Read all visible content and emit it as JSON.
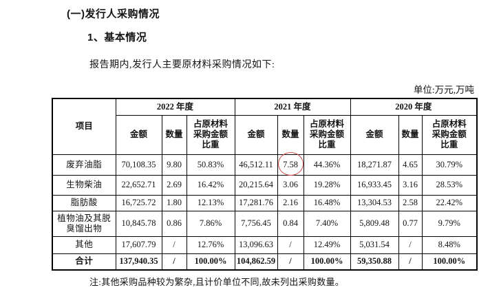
{
  "page": {
    "section_title": "(一)发行人采购情况",
    "subsection_title": "1、基本情况",
    "intro_text": "报告期内,发行人主要原材料采购情况如下:",
    "unit_label": "单位:万元,万吨",
    "note": "注:其他采购品种较为繁杂,且计价单位不同,故未列出采购数量。"
  },
  "table": {
    "header": {
      "item": "项目",
      "years": [
        "2022 年度",
        "2021 年度",
        "2020 年度"
      ],
      "metrics": [
        "金额",
        "数量",
        "占原材料\n采购金额\n比重"
      ]
    },
    "rows": [
      {
        "item": "废弃油脂",
        "values": [
          "70,108.35",
          "9.80",
          "50.83%",
          "46,512.11",
          "7.58",
          "44.36%",
          "18,271.87",
          "4.65",
          "30.79%"
        ],
        "circle_col": 4
      },
      {
        "item": "生物柴油",
        "values": [
          "22,652.71",
          "2.69",
          "16.42%",
          "20,215.64",
          "3.06",
          "19.28%",
          "16,933.45",
          "3.16",
          "28.53%"
        ]
      },
      {
        "item": "脂肪酸",
        "values": [
          "16,725.72",
          "1.80",
          "12.13%",
          "17,281.76",
          "2.16",
          "16.48%",
          "13,304.53",
          "2.58",
          "22.42%"
        ]
      },
      {
        "item": "植物油及其脱\n臭馏出物",
        "values": [
          "10,845.78",
          "0.86",
          "7.86%",
          "7,756.45",
          "0.84",
          "7.40%",
          "5,809.48",
          "0.77",
          "9.79%"
        ]
      },
      {
        "item": "其他",
        "values": [
          "17,607.79",
          "/",
          "12.76%",
          "13,096.63",
          "/",
          "12.49%",
          "5,031.54",
          "/",
          "8.48%"
        ]
      },
      {
        "item": "合计",
        "values": [
          "137,940.35",
          "/",
          "100.00%",
          "104,862.59",
          "/",
          "100.00%",
          "59,350.88",
          "/",
          "100.00%"
        ],
        "bold": true
      }
    ],
    "annotation": {
      "circled_value": "7.58",
      "circle_color": "#cf4a4a",
      "location": "2021年度 数量 of 废弃油脂"
    }
  }
}
